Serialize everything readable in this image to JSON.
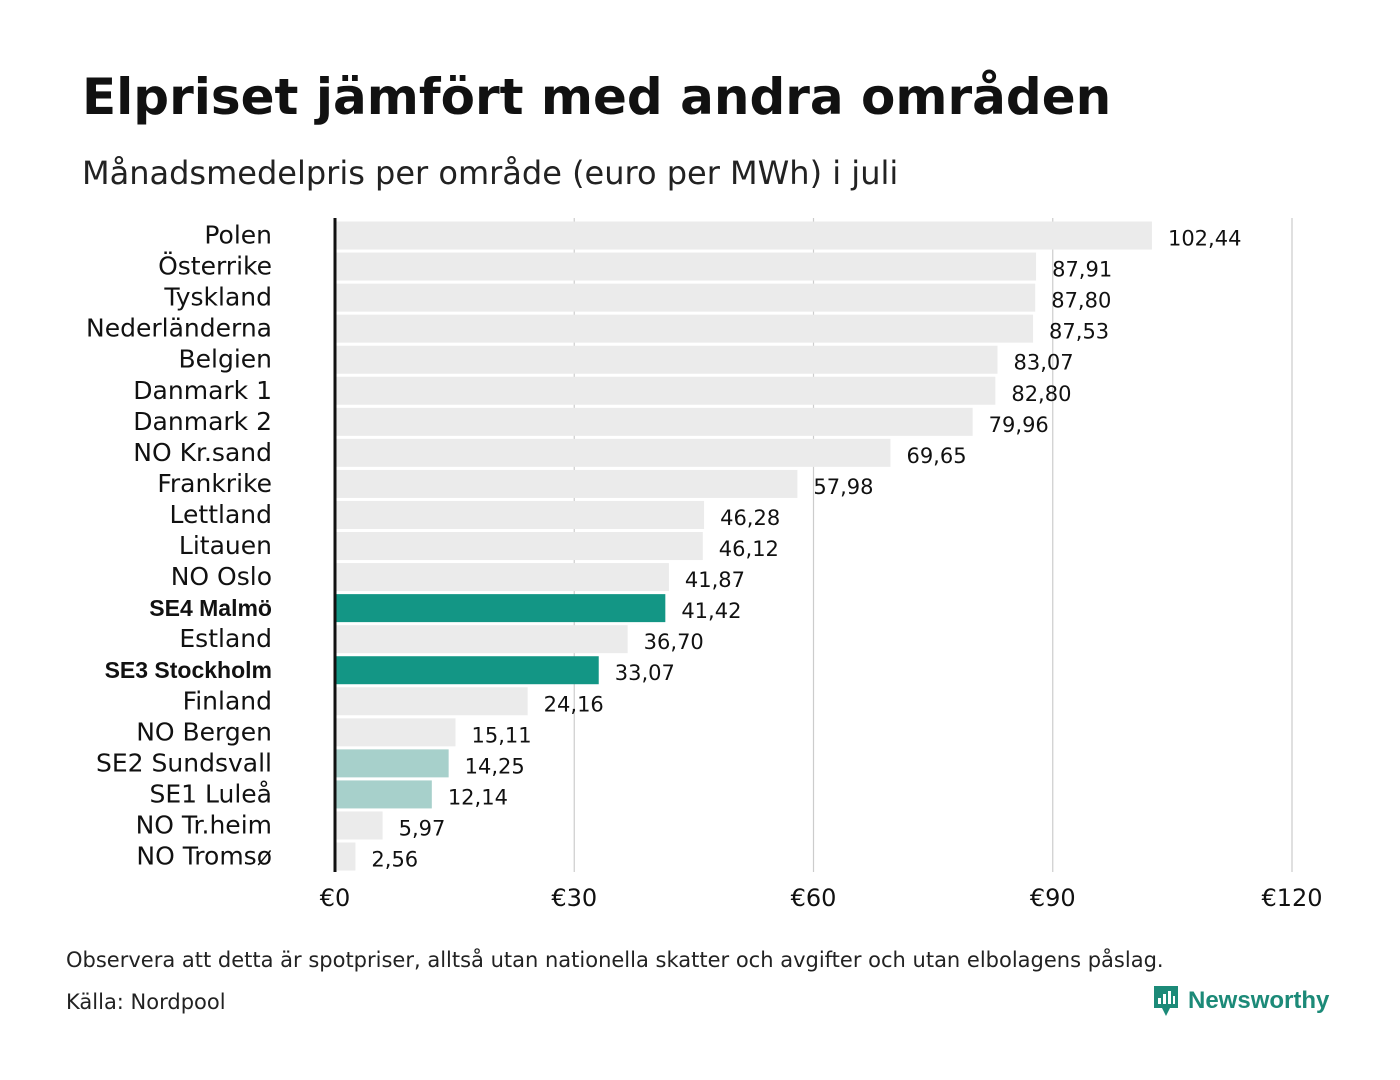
{
  "chart_data": {
    "type": "bar",
    "orientation": "horizontal",
    "title": "Elpriset jämfört med andra områden",
    "subtitle": "Månadsmedelpris per område (euro per MWh) i juli",
    "categories": [
      "Polen",
      "Österrike",
      "Tyskland",
      "Nederländerna",
      "Belgien",
      "Danmark  1",
      "Danmark  2",
      "NO Kr.sand",
      "Frankrike",
      "Lettland",
      "Litauen",
      "NO Oslo",
      "SE4 Malmö",
      "Estland",
      "SE3 Stockholm",
      "Finland",
      "NO Bergen",
      "SE2  Sundsvall",
      "SE1  Luleå",
      "NO Tr.heim",
      "NO Tromsø"
    ],
    "values": [
      102.44,
      87.91,
      87.8,
      87.53,
      83.07,
      82.8,
      79.96,
      69.65,
      57.98,
      46.28,
      46.12,
      41.87,
      41.42,
      36.7,
      33.07,
      24.16,
      15.11,
      14.25,
      12.14,
      5.97,
      2.56
    ],
    "value_labels": [
      "102,44",
      "87,91",
      "87,80",
      "87,53",
      "83,07",
      "82,80",
      "79,96",
      "69,65",
      "57,98",
      "46,28",
      "46,12",
      "41,87",
      "41,42",
      "36,70",
      "33,07",
      "24,16",
      "15,11",
      "14,25",
      "12,14",
      "5,97",
      "2,56"
    ],
    "highlight": [
      "none",
      "none",
      "none",
      "none",
      "none",
      "none",
      "none",
      "none",
      "none",
      "none",
      "none",
      "none",
      "strong",
      "none",
      "strong",
      "none",
      "none",
      "light",
      "light",
      "none",
      "none"
    ],
    "xlim": [
      0,
      120
    ],
    "xticks": [
      0,
      30,
      60,
      90,
      120
    ],
    "xtick_labels": [
      "€0",
      "€30",
      "€60",
      "€90",
      "€120"
    ],
    "grid": true,
    "colors": {
      "default": "#ebebeb",
      "strong": "#139685",
      "light": "#a7d0cb"
    }
  },
  "footnote": "Observera att detta är spotpriser, alltså utan nationella skatter och avgifter och utan elbolagens påslag.",
  "source": "Källa: Nordpool",
  "brand": {
    "name": "Newsworthy",
    "icon": "newsworthy-logo-icon",
    "color": "#1c8a78"
  }
}
